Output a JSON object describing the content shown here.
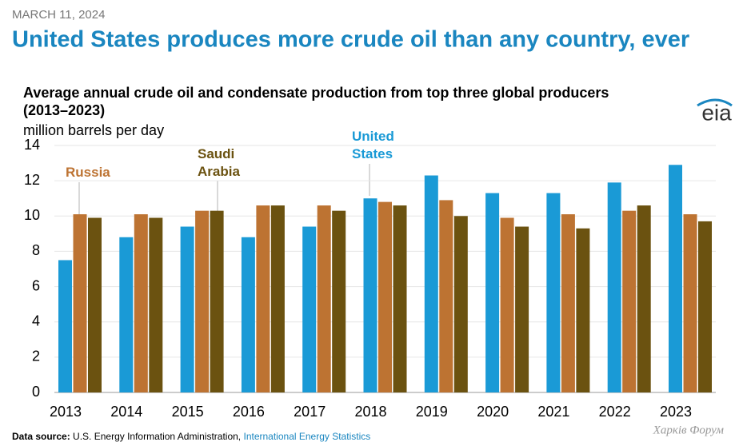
{
  "date": "MARCH 11, 2024",
  "headline": "United States produces more crude oil than any country, ever",
  "logo": "eia",
  "chart_data": {
    "type": "bar",
    "title": "Average annual crude oil and condensate production from top three global producers",
    "subtitle": "(2013–2023)",
    "y_label": "million barrels per day",
    "categories": [
      "2013",
      "2014",
      "2015",
      "2016",
      "2017",
      "2018",
      "2019",
      "2020",
      "2021",
      "2022",
      "2023"
    ],
    "series": [
      {
        "name": "United States",
        "color": "#1a9ad6",
        "values": [
          7.5,
          8.8,
          9.4,
          8.8,
          9.4,
          11.0,
          12.3,
          11.3,
          11.3,
          11.9,
          12.9
        ]
      },
      {
        "name": "Russia",
        "color": "#bd7332",
        "values": [
          10.1,
          10.1,
          10.3,
          10.6,
          10.6,
          10.8,
          10.9,
          9.9,
          10.1,
          10.3,
          10.1
        ]
      },
      {
        "name": "Saudi Arabia",
        "color": "#6b5210",
        "values": [
          9.9,
          9.9,
          10.3,
          10.6,
          10.3,
          10.6,
          10.0,
          9.4,
          9.3,
          10.6,
          9.7
        ]
      }
    ],
    "ylim": [
      0,
      14
    ],
    "yticks": [
      0,
      2,
      4,
      6,
      8,
      10,
      12,
      14
    ],
    "grid": true
  },
  "source": {
    "label": "Data source:",
    "text": "U.S. Energy Information Administration,",
    "link": "International Energy Statistics"
  },
  "watermark": "Харків Форум"
}
